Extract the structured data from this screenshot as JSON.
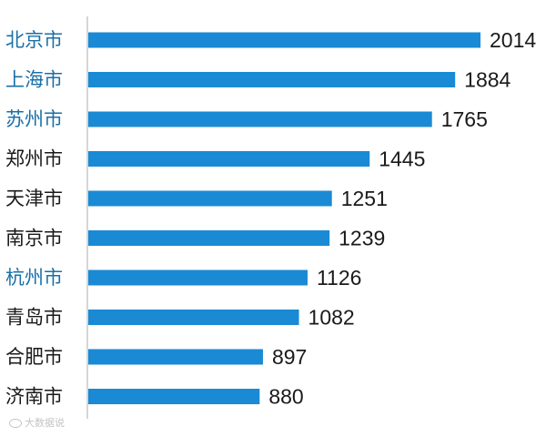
{
  "chart_data": {
    "type": "bar",
    "orientation": "horizontal",
    "categories": [
      "北京市",
      "上海市",
      "苏州市",
      "郑州市",
      "天津市",
      "南京市",
      "杭州市",
      "青岛市",
      "合肥市",
      "济南市"
    ],
    "values": [
      2014,
      1884,
      1765,
      1445,
      1251,
      1239,
      1126,
      1082,
      897,
      880
    ],
    "highlighted_categories": [
      "北京市",
      "上海市",
      "苏州市",
      "杭州市"
    ],
    "bar_color": "#1a8ad4",
    "highlight_label_color": "#1a6fa8",
    "label_color": "#1a1a1a",
    "axis_color": "#c8c8c8",
    "data_labels": true,
    "grid": false
  },
  "watermark": {
    "text": "大数据说",
    "icon": "weibo-logo-icon"
  }
}
